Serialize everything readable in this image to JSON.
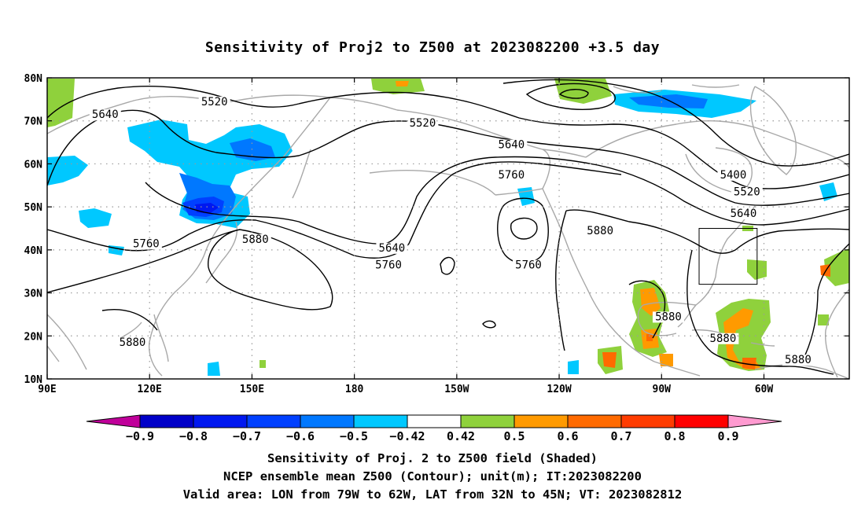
{
  "title": "Sensitivity of Proj2 to Z500 at 2023082200 +3.5 day",
  "map": {
    "lon_min": 90,
    "lon_max": 325,
    "lat_min": 10,
    "lat_max": 80,
    "lon_ticks": [
      {
        "lon": 90,
        "label": "90E"
      },
      {
        "lon": 120,
        "label": "120E"
      },
      {
        "lon": 150,
        "label": "150E"
      },
      {
        "lon": 180,
        "label": "180"
      },
      {
        "lon": 210,
        "label": "150W"
      },
      {
        "lon": 240,
        "label": "120W"
      },
      {
        "lon": 270,
        "label": "90W"
      },
      {
        "lon": 300,
        "label": "60W"
      }
    ],
    "lat_ticks": [
      {
        "lat": 80,
        "label": "80N"
      },
      {
        "lat": 70,
        "label": "70N"
      },
      {
        "lat": 60,
        "label": "60N"
      },
      {
        "lat": 50,
        "label": "50N"
      },
      {
        "lat": 40,
        "label": "40N"
      },
      {
        "lat": 30,
        "label": "30N"
      },
      {
        "lat": 20,
        "label": "20N"
      },
      {
        "lat": 10,
        "label": "10N"
      }
    ],
    "valid_box": {
      "lon_w": 281,
      "lon_e": 298,
      "lat_s": 32,
      "lat_n": 45
    },
    "contour_labels": [
      {
        "text": "5520",
        "lon": 139,
        "lat": 74
      },
      {
        "text": "5640",
        "lon": 107,
        "lat": 71
      },
      {
        "text": "5520",
        "lon": 200,
        "lat": 69
      },
      {
        "text": "5640",
        "lon": 226,
        "lat": 64
      },
      {
        "text": "5760",
        "lon": 226,
        "lat": 57
      },
      {
        "text": "5400",
        "lon": 291,
        "lat": 57
      },
      {
        "text": "5520",
        "lon": 295,
        "lat": 53
      },
      {
        "text": "5640",
        "lon": 294,
        "lat": 48
      },
      {
        "text": "5880",
        "lon": 252,
        "lat": 44
      },
      {
        "text": "5880",
        "lon": 151,
        "lat": 42
      },
      {
        "text": "5640",
        "lon": 191,
        "lat": 40
      },
      {
        "text": "5760",
        "lon": 190,
        "lat": 36
      },
      {
        "text": "5760",
        "lon": 231,
        "lat": 36
      },
      {
        "text": "5760",
        "lon": 119,
        "lat": 41
      },
      {
        "text": "5880",
        "lon": 272,
        "lat": 24
      },
      {
        "text": "5880",
        "lon": 288,
        "lat": 19
      },
      {
        "text": "5880",
        "lon": 310,
        "lat": 14
      },
      {
        "text": "5880",
        "lon": 115,
        "lat": 18
      }
    ]
  },
  "colorbar": {
    "colors": [
      "#c0009a",
      "#0000c8",
      "#0018f0",
      "#0040ff",
      "#0078ff",
      "#00c8ff",
      "#ffffff",
      "#8fd13c",
      "#ff9a00",
      "#ff6a00",
      "#ff3c00",
      "#ff0000",
      "#ff9ad0"
    ],
    "labels": [
      "−0.9",
      "−0.8",
      "−0.7",
      "−0.6",
      "−0.5",
      "−0.42",
      "0.42",
      "0.5",
      "0.6",
      "0.7",
      "0.8",
      "0.9"
    ]
  },
  "captions": {
    "line1": "Sensitivity of Proj. 2 to Z500 field (Shaded)",
    "line2": "NCEP ensemble mean Z500 (Contour); unit(m); IT:2023082200",
    "line3": "Valid area: LON from 79W to 62W, LAT from 32N to 45N; VT: 2023082812"
  }
}
